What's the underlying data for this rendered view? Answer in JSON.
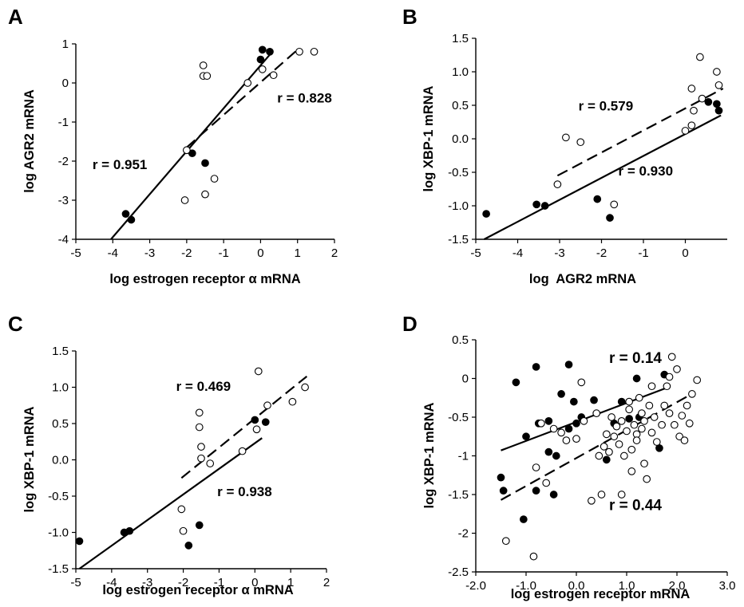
{
  "colors": {
    "ink": "#000000",
    "background": "#ffffff",
    "open_fill": "#ffffff",
    "closed_fill": "#000000"
  },
  "chart_data": [
    {
      "panel": "A",
      "type": "scatter",
      "xlabel": "log estrogen receptor α mRNA",
      "ylabel": "log AGR2 mRNA",
      "xlim": [
        -5,
        2
      ],
      "ylim": [
        -4,
        1
      ],
      "xticks": [
        -5,
        -4,
        -3,
        -2,
        -1,
        0,
        1,
        2
      ],
      "yticks": [
        -4,
        -3,
        -2,
        -1,
        0,
        1
      ],
      "x_tick_labels": [
        "-5",
        "-4",
        "-3",
        "-2",
        "-1",
        "0",
        "1",
        "2"
      ],
      "y_tick_labels": [
        "-4",
        "-3",
        "-2",
        "-1",
        "0",
        "1"
      ],
      "grid": false,
      "series": [
        {
          "marker": "filled",
          "points": [
            [
              -3.65,
              -3.35
            ],
            [
              -3.5,
              -3.5
            ],
            [
              -1.85,
              -1.8
            ],
            [
              -1.5,
              -2.05
            ],
            [
              0.0,
              0.6
            ],
            [
              0.05,
              0.85
            ],
            [
              0.25,
              0.8
            ]
          ]
        },
        {
          "marker": "open",
          "points": [
            [
              -2.05,
              -3.0
            ],
            [
              -2.0,
              -1.72
            ],
            [
              -1.55,
              0.45
            ],
            [
              -1.55,
              0.18
            ],
            [
              -1.45,
              0.18
            ],
            [
              -1.5,
              -2.85
            ],
            [
              -1.25,
              -2.45
            ],
            [
              -0.35,
              0.0
            ],
            [
              0.05,
              0.35
            ],
            [
              0.35,
              0.2
            ],
            [
              1.05,
              0.8
            ],
            [
              1.45,
              0.8
            ]
          ]
        }
      ],
      "fit_lines": [
        {
          "style": "solid",
          "from": [
            -4.05,
            -4.0
          ],
          "to": [
            0.3,
            0.78
          ]
        },
        {
          "style": "dashed",
          "from": [
            -2.0,
            -1.65
          ],
          "to": [
            1.0,
            0.85
          ]
        }
      ],
      "annotations": [
        {
          "text": "r = 0.951",
          "x": -4.55,
          "y": -2.2
        },
        {
          "text": "r = 0.828",
          "x": 0.45,
          "y": -0.5
        }
      ]
    },
    {
      "panel": "B",
      "type": "scatter",
      "xlabel": "log  AGR2 mRNA",
      "ylabel": "log XBP-1 mRNA",
      "xlim": [
        -5,
        1
      ],
      "ylim": [
        -1.5,
        1.5
      ],
      "xticks": [
        -5,
        -4,
        -3,
        -2,
        -1,
        0
      ],
      "yticks": [
        -1.5,
        -1.0,
        -0.5,
        0.0,
        0.5,
        1.0,
        1.5
      ],
      "x_tick_labels": [
        "-5",
        "-4",
        "-3",
        "-2",
        "-1",
        "0"
      ],
      "y_tick_labels": [
        "-1.5",
        "-1.0",
        "-0.5",
        "0.0",
        "0.5",
        "1.0",
        "1.5"
      ],
      "grid": false,
      "series": [
        {
          "marker": "filled",
          "points": [
            [
              -4.75,
              -1.12
            ],
            [
              -3.55,
              -0.98
            ],
            [
              -3.35,
              -1.0
            ],
            [
              -2.1,
              -0.9
            ],
            [
              -1.8,
              -1.18
            ],
            [
              0.55,
              0.55
            ],
            [
              0.75,
              0.52
            ],
            [
              0.8,
              0.42
            ]
          ]
        },
        {
          "marker": "open",
          "points": [
            [
              -3.05,
              -0.68
            ],
            [
              -2.85,
              0.02
            ],
            [
              -2.5,
              -0.05
            ],
            [
              -1.7,
              -0.98
            ],
            [
              0.0,
              0.12
            ],
            [
              0.15,
              0.2
            ],
            [
              0.15,
              0.75
            ],
            [
              0.2,
              0.42
            ],
            [
              0.35,
              1.22
            ],
            [
              0.4,
              0.6
            ],
            [
              0.75,
              1.0
            ],
            [
              0.8,
              0.8
            ]
          ]
        }
      ],
      "fit_lines": [
        {
          "style": "solid",
          "from": [
            -4.8,
            -1.5
          ],
          "to": [
            0.85,
            0.35
          ]
        },
        {
          "style": "dashed",
          "from": [
            -3.05,
            -0.55
          ],
          "to": [
            0.9,
            0.75
          ]
        }
      ],
      "annotations": [
        {
          "text": "r = 0.579",
          "x": -2.55,
          "y": 0.42
        },
        {
          "text": "r = 0.930",
          "x": -1.6,
          "y": -0.55
        }
      ]
    },
    {
      "panel": "C",
      "type": "scatter",
      "xlabel": "log estrogen receptor α mRNA",
      "ylabel": "log XBP-1 mRNA",
      "xlim": [
        -5,
        2
      ],
      "ylim": [
        -1.5,
        1.5
      ],
      "xticks": [
        -5,
        -4,
        -3,
        -2,
        -1,
        0,
        1,
        2
      ],
      "yticks": [
        -1.5,
        -1.0,
        -0.5,
        0.0,
        0.5,
        1.0,
        1.5
      ],
      "x_tick_labels": [
        "-5",
        "-4",
        "-3",
        "-2",
        "-1",
        "0",
        "1",
        "2"
      ],
      "y_tick_labels": [
        "-1.5",
        "-1.0",
        "-0.5",
        "0.0",
        "0.5",
        "1.0",
        "1.5"
      ],
      "grid": false,
      "series": [
        {
          "marker": "filled",
          "points": [
            [
              -4.9,
              -1.12
            ],
            [
              -3.65,
              -1.0
            ],
            [
              -3.5,
              -0.98
            ],
            [
              -1.85,
              -1.18
            ],
            [
              -1.55,
              -0.9
            ],
            [
              0.0,
              0.55
            ],
            [
              0.3,
              0.52
            ]
          ]
        },
        {
          "marker": "open",
          "points": [
            [
              -2.05,
              -0.68
            ],
            [
              -2.0,
              -0.98
            ],
            [
              -1.55,
              0.65
            ],
            [
              -1.55,
              0.45
            ],
            [
              -1.5,
              0.18
            ],
            [
              -1.5,
              0.02
            ],
            [
              -1.25,
              -0.05
            ],
            [
              -0.35,
              0.12
            ],
            [
              0.05,
              0.42
            ],
            [
              0.1,
              1.22
            ],
            [
              0.35,
              0.75
            ],
            [
              1.05,
              0.8
            ],
            [
              1.4,
              1.0
            ]
          ]
        }
      ],
      "fit_lines": [
        {
          "style": "solid",
          "from": [
            -4.9,
            -1.5
          ],
          "to": [
            0.2,
            0.3
          ]
        },
        {
          "style": "dashed",
          "from": [
            -2.05,
            -0.25
          ],
          "to": [
            1.45,
            1.15
          ]
        }
      ],
      "annotations": [
        {
          "text": "r = 0.469",
          "x": -2.2,
          "y": 0.95
        },
        {
          "text": "r = 0.938",
          "x": -1.05,
          "y": -0.5
        }
      ]
    },
    {
      "panel": "D",
      "type": "scatter",
      "xlabel": "log estrogen receptor mRNA",
      "ylabel": "log XBP-1 mRNA",
      "xlim": [
        -2.0,
        3.0
      ],
      "ylim": [
        -2.5,
        0.5
      ],
      "xticks": [
        -2.0,
        -1.0,
        0.0,
        1.0,
        2.0,
        3.0
      ],
      "yticks": [
        -2.5,
        -2,
        -1.5,
        -1,
        -0.5,
        0,
        0.5
      ],
      "x_tick_labels": [
        "-2.0",
        "-1.0",
        "0.0",
        "1.0",
        "2.0",
        "3.0"
      ],
      "y_tick_labels": [
        "-2.5",
        "-2",
        "-1.5",
        "-1",
        "-0.5",
        "0",
        "0.5"
      ],
      "grid": false,
      "series": [
        {
          "marker": "filled",
          "points": [
            [
              -1.5,
              -1.28
            ],
            [
              -1.45,
              -1.45
            ],
            [
              -1.2,
              -0.05
            ],
            [
              -1.05,
              -1.82
            ],
            [
              -1.0,
              -0.75
            ],
            [
              -0.8,
              0.15
            ],
            [
              -0.75,
              -0.58
            ],
            [
              -0.8,
              -1.45
            ],
            [
              -0.55,
              -0.55
            ],
            [
              -0.55,
              -0.95
            ],
            [
              -0.45,
              -1.5
            ],
            [
              -0.4,
              -1.0
            ],
            [
              -0.3,
              -0.2
            ],
            [
              -0.15,
              -0.65
            ],
            [
              -0.15,
              0.18
            ],
            [
              -0.05,
              -0.3
            ],
            [
              0.0,
              -0.58
            ],
            [
              0.1,
              -0.5
            ],
            [
              0.35,
              -0.28
            ],
            [
              0.6,
              -1.05
            ],
            [
              0.75,
              -0.58
            ],
            [
              0.9,
              -0.3
            ],
            [
              1.05,
              -0.52
            ],
            [
              1.2,
              0.0
            ],
            [
              1.25,
              -0.5
            ],
            [
              1.65,
              -0.9
            ],
            [
              1.75,
              0.05
            ]
          ]
        },
        {
          "marker": "open",
          "points": [
            [
              -1.4,
              -2.1
            ],
            [
              -0.85,
              -2.3
            ],
            [
              -0.8,
              -1.15
            ],
            [
              -0.7,
              -0.58
            ],
            [
              -0.6,
              -1.35
            ],
            [
              -0.45,
              -0.65
            ],
            [
              -0.3,
              -0.7
            ],
            [
              -0.2,
              -0.8
            ],
            [
              0.0,
              -0.78
            ],
            [
              0.1,
              -0.05
            ],
            [
              0.15,
              -0.55
            ],
            [
              0.3,
              -1.58
            ],
            [
              0.4,
              -0.45
            ],
            [
              0.45,
              -1.0
            ],
            [
              0.5,
              -1.5
            ],
            [
              0.55,
              -0.88
            ],
            [
              0.6,
              -0.72
            ],
            [
              0.65,
              -0.95
            ],
            [
              0.7,
              -0.5
            ],
            [
              0.75,
              -0.75
            ],
            [
              0.8,
              -0.62
            ],
            [
              0.85,
              -0.85
            ],
            [
              0.9,
              -1.5
            ],
            [
              0.9,
              -0.55
            ],
            [
              0.95,
              -1.0
            ],
            [
              1.0,
              -0.68
            ],
            [
              1.05,
              -0.3
            ],
            [
              1.05,
              -0.4
            ],
            [
              1.1,
              -1.2
            ],
            [
              1.1,
              -0.92
            ],
            [
              1.15,
              -0.6
            ],
            [
              1.2,
              -0.72
            ],
            [
              1.2,
              -0.8
            ],
            [
              1.25,
              -0.25
            ],
            [
              1.3,
              -0.45
            ],
            [
              1.3,
              -0.65
            ],
            [
              1.35,
              -1.1
            ],
            [
              1.35,
              -0.55
            ],
            [
              1.4,
              -1.3
            ],
            [
              1.45,
              -0.35
            ],
            [
              1.5,
              -0.7
            ],
            [
              1.5,
              -0.1
            ],
            [
              1.55,
              -0.5
            ],
            [
              1.6,
              -0.82
            ],
            [
              1.7,
              -0.6
            ],
            [
              1.75,
              -0.35
            ],
            [
              1.8,
              -0.1
            ],
            [
              1.85,
              0.02
            ],
            [
              1.85,
              -0.45
            ],
            [
              1.9,
              0.28
            ],
            [
              1.95,
              -0.6
            ],
            [
              2.0,
              0.12
            ],
            [
              2.05,
              -0.75
            ],
            [
              2.1,
              -0.48
            ],
            [
              2.15,
              -0.8
            ],
            [
              2.2,
              -0.35
            ],
            [
              2.25,
              -0.58
            ],
            [
              2.3,
              -0.2
            ],
            [
              2.4,
              -0.02
            ]
          ]
        }
      ],
      "fit_lines": [
        {
          "style": "solid",
          "from": [
            -1.5,
            -0.93
          ],
          "to": [
            1.8,
            -0.12
          ]
        },
        {
          "style": "dashed",
          "from": [
            -1.5,
            -1.57
          ],
          "to": [
            2.35,
            -0.18
          ]
        }
      ],
      "annotations": [
        {
          "text": "r = 0.14",
          "x": 0.65,
          "y": 0.2
        },
        {
          "text": "r = 0.44",
          "x": 0.65,
          "y": -1.7
        }
      ]
    }
  ]
}
